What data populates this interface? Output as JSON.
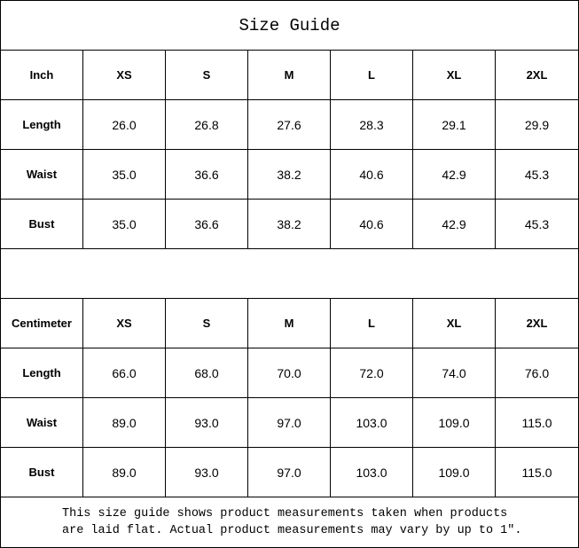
{
  "title": "Size Guide",
  "sizes": [
    "XS",
    "S",
    "M",
    "L",
    "XL",
    "2XL"
  ],
  "inch": {
    "label": "Inch",
    "rows": [
      {
        "name": "Length",
        "values": [
          "26.0",
          "26.8",
          "27.6",
          "28.3",
          "29.1",
          "29.9"
        ]
      },
      {
        "name": "Waist",
        "values": [
          "35.0",
          "36.6",
          "38.2",
          "40.6",
          "42.9",
          "45.3"
        ]
      },
      {
        "name": "Bust",
        "values": [
          "35.0",
          "36.6",
          "38.2",
          "40.6",
          "42.9",
          "45.3"
        ]
      }
    ]
  },
  "cm": {
    "label": "Centimeter",
    "rows": [
      {
        "name": "Length",
        "values": [
          "66.0",
          "68.0",
          "70.0",
          "72.0",
          "74.0",
          "76.0"
        ]
      },
      {
        "name": "Waist",
        "values": [
          "89.0",
          "93.0",
          "97.0",
          "103.0",
          "109.0",
          "115.0"
        ]
      },
      {
        "name": "Bust",
        "values": [
          "89.0",
          "93.0",
          "97.0",
          "103.0",
          "109.0",
          "115.0"
        ]
      }
    ]
  },
  "note": {
    "line1": "This size guide shows product measurements taken when products",
    "line2": "are laid flat. Actual product measurements may vary by up to 1″."
  }
}
